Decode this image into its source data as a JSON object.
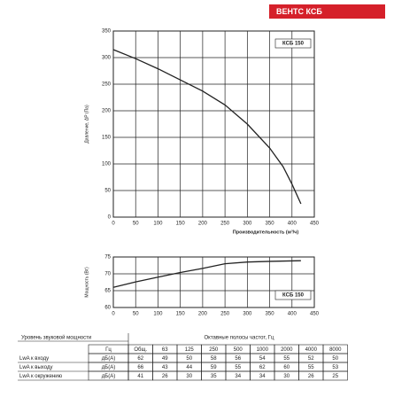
{
  "header": "ВЕНТС КСБ",
  "chart_data": [
    {
      "type": "line",
      "ylabel": "Давление, ΔP (Па)",
      "xlabel": "Производительность (м³/ч)",
      "xlim": [
        0,
        450
      ],
      "xticks": [
        0,
        50,
        100,
        150,
        200,
        250,
        300,
        350,
        400,
        450
      ],
      "ylim": [
        0,
        350
      ],
      "yticks": [
        0,
        50,
        100,
        150,
        200,
        250,
        300,
        350
      ],
      "grid": true,
      "series": [
        {
          "name": "КСБ 150",
          "color": "#222222",
          "x": [
            0,
            50,
            100,
            150,
            200,
            250,
            300,
            350,
            380,
            400,
            420
          ],
          "values": [
            315,
            298,
            279,
            258,
            237,
            211,
            175,
            130,
            95,
            62,
            25
          ]
        }
      ]
    },
    {
      "type": "line",
      "ylabel": "Мощность (Вт)",
      "xlim": [
        0,
        450
      ],
      "xticks": [
        0,
        50,
        100,
        150,
        200,
        250,
        300,
        350,
        400,
        450
      ],
      "ylim": [
        60,
        75
      ],
      "yticks": [
        60,
        65,
        70,
        75
      ],
      "grid": true,
      "series": [
        {
          "name": "КСБ 150",
          "color": "#222222",
          "x": [
            0,
            50,
            100,
            150,
            200,
            250,
            300,
            350,
            420
          ],
          "values": [
            66,
            67.6,
            69,
            70.4,
            71.6,
            73,
            73.5,
            73.7,
            73.9
          ]
        }
      ]
    }
  ],
  "table": {
    "title_left": "Уровень звуковой мощности",
    "title_right": "Октавные полосы частот, Гц",
    "header": [
      "Гц",
      "Общ.",
      63,
      125,
      250,
      500,
      1000,
      2000,
      4000,
      8000
    ],
    "rows": [
      {
        "label": "LwA к входу",
        "cells": [
          "дБ(А)",
          62,
          49,
          50,
          58,
          56,
          54,
          55,
          52,
          50
        ]
      },
      {
        "label": "LwA к выходу",
        "cells": [
          "дБ(А)",
          66,
          43,
          44,
          59,
          55,
          62,
          60,
          55,
          53
        ]
      },
      {
        "label": "LwA к окружению",
        "cells": [
          "дБ(А)",
          41,
          26,
          30,
          35,
          34,
          34,
          30,
          26,
          25
        ]
      }
    ]
  }
}
